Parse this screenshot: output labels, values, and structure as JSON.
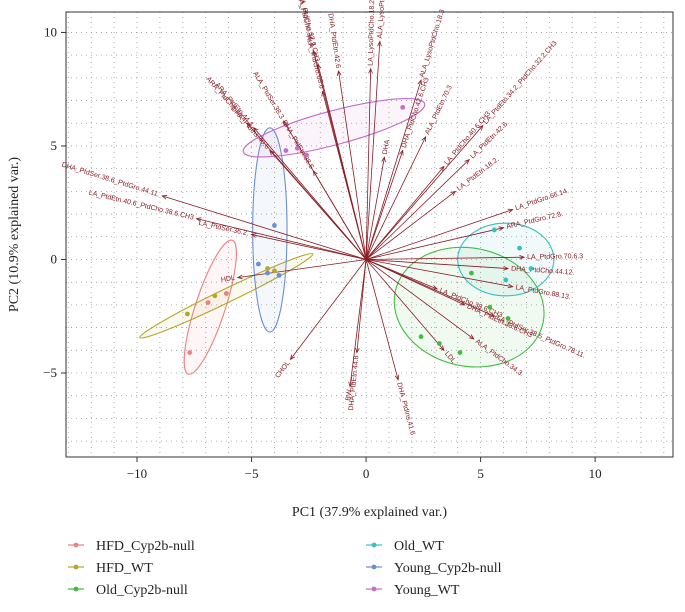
{
  "chart_data": {
    "type": "scatter",
    "xlabel": "PC1 (37.9% explained var.)",
    "ylabel": "PC2 (10.9% explained var.)",
    "xlim": [
      -13.1,
      13.4
    ],
    "ylim": [
      -8.7,
      10.9
    ],
    "xticks": [
      -10,
      -5,
      0,
      5,
      10
    ],
    "yticks": [
      -5,
      0,
      5,
      10
    ],
    "grid": "dotted",
    "legend_position": "bottom",
    "colors": {
      "HFD_Cyp2b-null": "#f08080",
      "HFD_WT": "#b3a62a",
      "Old_Cyp2b-null": "#3fbf3f",
      "Old_WT": "#38bfbf",
      "Young_Cyp2b-null": "#6a8fd6",
      "Young_WT": "#c46cc9",
      "loading": "#8a1c24"
    },
    "series": [
      {
        "name": "HFD_Cyp2b-null",
        "points": [
          [
            -7.7,
            -4.1
          ],
          [
            -6.1,
            -1.5
          ],
          [
            -6.9,
            -1.9
          ]
        ],
        "ellipse": {
          "cx": -6.8,
          "cy": -2.1,
          "rx": 3.1,
          "ry": 0.65,
          "angle": 72
        }
      },
      {
        "name": "HFD_WT",
        "points": [
          [
            -7.8,
            -2.4
          ],
          [
            -6.6,
            -1.6
          ],
          [
            -4.3,
            -0.4
          ],
          [
            -4.0,
            -0.5
          ]
        ],
        "ellipse": {
          "cx": -6.1,
          "cy": -1.6,
          "rx": 4.2,
          "ry": 0.3,
          "angle": 26
        }
      },
      {
        "name": "Old_Cyp2b-null",
        "points": [
          [
            2.4,
            -3.4
          ],
          [
            3.2,
            -3.7
          ],
          [
            4.1,
            -4.1
          ],
          [
            5.4,
            -2.1
          ],
          [
            6.2,
            -2.6
          ],
          [
            4.6,
            -0.6
          ]
        ],
        "ellipse": {
          "cx": 4.5,
          "cy": -2.1,
          "rx": 3.3,
          "ry": 2.6,
          "angle": -12
        }
      },
      {
        "name": "Old_WT",
        "points": [
          [
            5.6,
            1.3
          ],
          [
            6.7,
            0.5
          ],
          [
            7.2,
            -0.4
          ],
          [
            6.1,
            -0.9
          ]
        ],
        "ellipse": {
          "cx": 6.1,
          "cy": 0.0,
          "rx": 2.1,
          "ry": 1.6,
          "angle": 0
        }
      },
      {
        "name": "Young_Cyp2b-null",
        "points": [
          [
            -4.7,
            -0.2
          ],
          [
            -4.3,
            -0.6
          ],
          [
            -3.8,
            -0.7
          ],
          [
            -4.0,
            1.5
          ]
        ],
        "ellipse": {
          "cx": -4.2,
          "cy": 1.3,
          "rx": 0.75,
          "ry": 4.5,
          "angle": 0
        }
      },
      {
        "name": "Young_WT",
        "points": [
          [
            -3.5,
            4.8
          ],
          [
            -2.6,
            4.6
          ],
          [
            1.6,
            6.7
          ],
          [
            -3.0,
            4.9
          ]
        ],
        "ellipse": {
          "cx": -1.4,
          "cy": 5.8,
          "rx": 4.1,
          "ry": 0.75,
          "angle": 15
        }
      }
    ],
    "loadings": [
      {
        "label": "LA_LysoPtdCho.18.2",
        "x": 0.2,
        "y": 8.4
      },
      {
        "label": "ALA_LysoPtdCho.18.3",
        "x": 0.6,
        "y": 9.6
      },
      {
        "label": "ALA_PtdCho.34.3.",
        "x": -2.3,
        "y": 9.2
      },
      {
        "label": "ARA_PtdCho.32.2.CH3",
        "x": -2.1,
        "y": 8.6
      },
      {
        "label": "DHA_PtdEtn.42.6",
        "x": -1.2,
        "y": 8.3
      },
      {
        "label": "ALA_PtdGro.68.6",
        "x": -1.9,
        "y": 7.4
      },
      {
        "label": "ALA_LysoPtdCho.18.3",
        "x": 2.4,
        "y": 7.9
      },
      {
        "label": "ARA_PtdCho.44.4",
        "x": -5.2,
        "y": 6.0
      },
      {
        "label": "ARA_PtdEtn.44.4",
        "x": -4.9,
        "y": 5.8
      },
      {
        "label": "ALA_PtdSer.38.3",
        "x": -3.6,
        "y": 6.1
      },
      {
        "label": "DHA_PtdIns.40.6",
        "x": -4.2,
        "y": 4.8
      },
      {
        "label": "DHA_PtdEtn.38.6",
        "x": -2.3,
        "y": 3.9
      },
      {
        "label": "DHA_PtdSer.38.6_PtdGro.44.11.",
        "x": -8.9,
        "y": 2.8
      },
      {
        "label": "LA_PtdEtn.40.6_PtdCho.38.6.CH3",
        "x": -7.4,
        "y": 1.8
      },
      {
        "label": "LA_PtdSer.36.2.",
        "x": -5.0,
        "y": 1.1
      },
      {
        "label": "HDL",
        "x": -5.6,
        "y": -0.8
      },
      {
        "label": "CHOL",
        "x": -3.3,
        "y": -4.4
      },
      {
        "label": "DHA_PtdEtn.44.8",
        "x": -0.4,
        "y": -4.1
      },
      {
        "label": "BW",
        "x": -0.7,
        "y": -5.6
      },
      {
        "label": "DHA_PtdIns.41.6",
        "x": 1.4,
        "y": -5.3
      },
      {
        "label": "LDL",
        "x": 3.4,
        "y": -4.0
      },
      {
        "label": "ALA_PtdCho.34.3.",
        "x": 4.7,
        "y": -3.5
      },
      {
        "label": "LA_PtdSer.38.5_PtdGro.78.11.",
        "x": 5.6,
        "y": -2.5
      },
      {
        "label": "DHA_PtdEtn.38.6.CH3",
        "x": 4.3,
        "y": -2.0
      },
      {
        "label": "LA_PtdCho.38.6.CH3",
        "x": 3.1,
        "y": -1.3
      },
      {
        "label": "LA_PtdGro.88.13.",
        "x": 6.4,
        "y": -1.2
      },
      {
        "label": "DHA_PtdCho.44.12.",
        "x": 6.2,
        "y": -0.4
      },
      {
        "label": "LA_PtdGro.70.6.3",
        "x": 6.9,
        "y": 0.1
      },
      {
        "label": "ARA_PtdGro.72.8.",
        "x": 6.0,
        "y": 1.4
      },
      {
        "label": "LA_PtdGro.66.14.",
        "x": 6.4,
        "y": 2.2
      },
      {
        "label": "LA_PtdEtn.18.2.",
        "x": 3.9,
        "y": 3.0
      },
      {
        "label": "LA_PtdCho.40.6.CH3",
        "x": 3.4,
        "y": 4.1
      },
      {
        "label": "LA_PtdEtn.42.6.",
        "x": 4.5,
        "y": 4.4
      },
      {
        "label": "LA_PtdEtn.34.2_PtdCho.32.2.CH3",
        "x": 5.1,
        "y": 5.9
      },
      {
        "label": "DHA_PtdCho.42.6.CH3",
        "x": 1.6,
        "y": 4.8
      },
      {
        "label": "DHA",
        "x": 0.8,
        "y": 4.5
      },
      {
        "label": "ALA_PtdEtn.70.3",
        "x": 2.6,
        "y": 5.4
      }
    ]
  },
  "legend": {
    "items": [
      {
        "label": "HFD_Cyp2b-null",
        "color": "#f08080"
      },
      {
        "label": "HFD_WT",
        "color": "#b3a62a"
      },
      {
        "label": "Old_Cyp2b-null",
        "color": "#3fbf3f"
      },
      {
        "label": "Old_WT",
        "color": "#38bfbf"
      },
      {
        "label": "Young_Cyp2b-null",
        "color": "#6a8fd6"
      },
      {
        "label": "Young_WT",
        "color": "#c46cc9"
      }
    ]
  }
}
